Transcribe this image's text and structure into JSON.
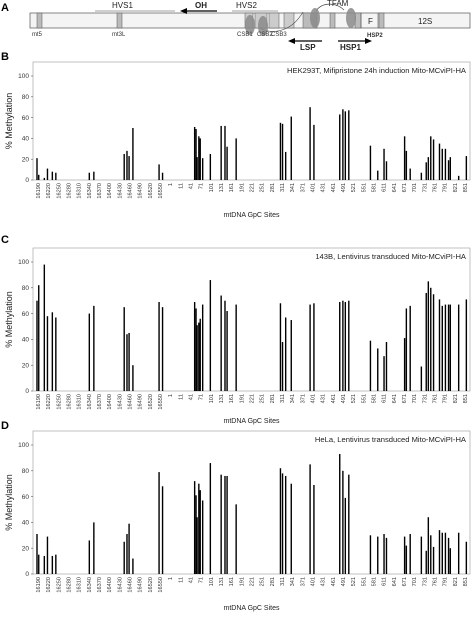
{
  "map": {
    "panel_letter": "A",
    "hvs1": "HVS1",
    "hvs2": "HVS2",
    "oh": "OH",
    "tfam": "TFAM",
    "mt5": "mt5",
    "mt3l": "mt3L",
    "csb1": "CSB1",
    "csb2": "CSB2",
    "csb3": "CSB3",
    "lsp": "LSP",
    "hsp1": "HSP1",
    "hsp2": "HSP2",
    "f": "F",
    "s12": "12S"
  },
  "chart_data": [
    {
      "type": "bar",
      "panel": "B",
      "title": "HEK293T, Mifipristone 24h induction Mito-MCviPI-HA",
      "ylabel": "% Methylation",
      "xlabel": "mtDNA GpC Sites",
      "ylim": [
        0,
        100
      ],
      "yticks": [
        0,
        20,
        40,
        60,
        80,
        100
      ],
      "xticks": [
        "16190",
        "16220",
        "16250",
        "16280",
        "16310",
        "16340",
        "16370",
        "16400",
        "16430",
        "16460",
        "16490",
        "16520",
        "16550",
        "1",
        "11",
        "41",
        "71",
        "101",
        "131",
        "161",
        "191",
        "221",
        "251",
        "281",
        "311",
        "341",
        "371",
        "401",
        "431",
        "461",
        "491",
        "521",
        "551",
        "581",
        "611",
        "641",
        "671",
        "701",
        "731",
        "761",
        "791",
        "821",
        "851"
      ],
      "x": [
        16190,
        16195,
        16211,
        16220,
        16234,
        16244,
        16340,
        16353,
        16440,
        16448,
        16454,
        16465,
        16540,
        16550,
        73,
        77,
        80,
        85,
        89,
        96,
        118,
        149,
        160,
        166,
        192,
        319,
        325,
        334,
        350,
        404,
        415,
        489,
        498,
        505,
        515,
        577,
        598,
        616,
        623,
        675,
        680,
        691,
        723,
        737,
        743,
        750,
        758,
        775,
        783,
        792,
        801,
        806,
        830,
        852
      ],
      "values": [
        21,
        5,
        2,
        11,
        8,
        7,
        7,
        8,
        25,
        28,
        23,
        50,
        15,
        7,
        51,
        49,
        22,
        42,
        40,
        21,
        25,
        52,
        52,
        32,
        40,
        55,
        54,
        27,
        61,
        70,
        53,
        63,
        68,
        66,
        67,
        33,
        9,
        30,
        18,
        42,
        28,
        11,
        7,
        17,
        22,
        42,
        39,
        35,
        30,
        30,
        19,
        22,
        4,
        23
      ]
    },
    {
      "type": "bar",
      "panel": "C",
      "title": "143B, Lentivirus transduced Mito-MCviPI-HA",
      "ylabel": "% Methylation",
      "xlabel": "mtDNA GpC Sites",
      "ylim": [
        0,
        100
      ],
      "yticks": [
        0,
        20,
        40,
        60,
        80,
        100
      ],
      "xticks": [
        "16190",
        "16220",
        "16250",
        "16280",
        "16310",
        "16340",
        "16370",
        "16400",
        "16430",
        "16460",
        "16490",
        "16520",
        "16550",
        "1",
        "11",
        "41",
        "71",
        "101",
        "131",
        "161",
        "191",
        "221",
        "251",
        "281",
        "311",
        "341",
        "371",
        "401",
        "431",
        "461",
        "491",
        "521",
        "551",
        "581",
        "611",
        "641",
        "671",
        "701",
        "731",
        "761",
        "791",
        "821",
        "851"
      ],
      "x": [
        16190,
        16195,
        16211,
        16220,
        16234,
        16244,
        16340,
        16353,
        16440,
        16448,
        16454,
        16465,
        16540,
        16550,
        73,
        77,
        80,
        85,
        89,
        96,
        118,
        149,
        160,
        166,
        192,
        319,
        325,
        334,
        350,
        404,
        415,
        489,
        498,
        505,
        515,
        577,
        598,
        616,
        623,
        675,
        680,
        691,
        723,
        737,
        743,
        750,
        758,
        775,
        783,
        792,
        801,
        806,
        830,
        852
      ],
      "values": [
        70,
        82,
        98,
        58,
        61,
        57,
        60,
        66,
        65,
        44,
        45,
        20,
        69,
        65,
        69,
        64,
        51,
        53,
        56,
        67,
        86,
        74,
        70,
        62,
        67,
        68,
        38,
        57,
        55,
        67,
        68,
        69,
        70,
        69,
        70,
        39,
        33,
        27,
        38,
        41,
        64,
        66,
        19,
        76,
        85,
        80,
        75,
        71,
        66,
        67,
        67,
        67,
        67,
        71
      ]
    },
    {
      "type": "bar",
      "panel": "D",
      "title": "HeLa, Lentivirus transduced Mito-MCviPI-HA",
      "ylabel": "% Methylation",
      "xlabel": "mtDNA GpC Sites",
      "ylim": [
        0,
        100
      ],
      "yticks": [
        0,
        20,
        40,
        60,
        80,
        100
      ],
      "xticks": [
        "16190",
        "16220",
        "16250",
        "16280",
        "16310",
        "16340",
        "16370",
        "16400",
        "16430",
        "16460",
        "16490",
        "16520",
        "16550",
        "1",
        "11",
        "41",
        "71",
        "101",
        "131",
        "161",
        "191",
        "221",
        "251",
        "281",
        "311",
        "341",
        "371",
        "401",
        "431",
        "461",
        "491",
        "521",
        "551",
        "581",
        "611",
        "641",
        "671",
        "701",
        "731",
        "761",
        "791",
        "821",
        "851"
      ],
      "x": [
        16190,
        16195,
        16211,
        16220,
        16234,
        16244,
        16340,
        16353,
        16440,
        16448,
        16454,
        16465,
        16540,
        16550,
        73,
        77,
        80,
        85,
        89,
        96,
        118,
        149,
        160,
        166,
        192,
        319,
        325,
        334,
        350,
        404,
        415,
        489,
        498,
        505,
        515,
        577,
        598,
        616,
        623,
        675,
        680,
        691,
        723,
        737,
        743,
        750,
        758,
        775,
        783,
        792,
        801,
        806,
        830,
        852
      ],
      "values": [
        31,
        15,
        14,
        29,
        14,
        15,
        26,
        40,
        25,
        31,
        39,
        12,
        79,
        68,
        72,
        61,
        44,
        70,
        65,
        57,
        86,
        77,
        76,
        76,
        54,
        82,
        78,
        76,
        70,
        85,
        69,
        93,
        80,
        59,
        77,
        30,
        29,
        31,
        28,
        29,
        22,
        31,
        29,
        18,
        44,
        30,
        21,
        34,
        32,
        32,
        28,
        20,
        32,
        25
      ]
    }
  ]
}
